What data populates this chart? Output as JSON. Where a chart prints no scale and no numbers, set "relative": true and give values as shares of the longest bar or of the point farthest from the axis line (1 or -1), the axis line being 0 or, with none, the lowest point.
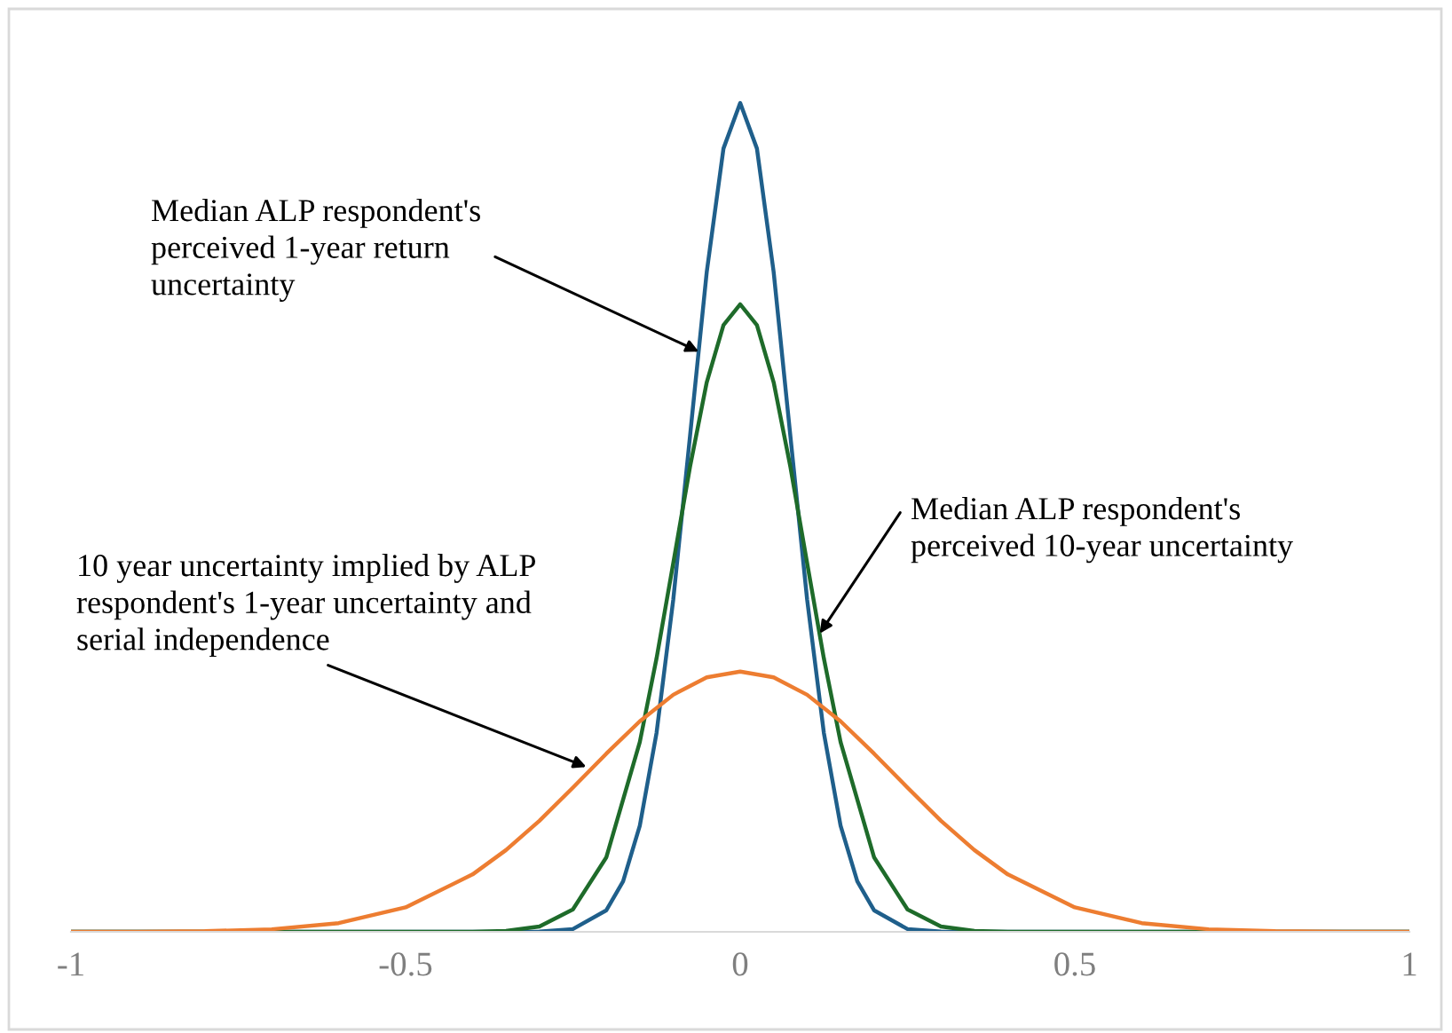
{
  "chart_data": {
    "type": "line",
    "relative": true,
    "tick_labels": "x",
    "grid": false,
    "xlim": [
      -1,
      1
    ],
    "xticks": [
      -1,
      -0.5,
      0,
      0.5,
      1
    ],
    "series": [
      {
        "color": "#1f5f8b",
        "x": [
          -1,
          -0.4,
          -0.3,
          -0.25,
          -0.2,
          -0.175,
          -0.15,
          -0.125,
          -0.1,
          -0.075,
          -0.05,
          -0.025,
          0,
          0.025,
          0.05,
          0.075,
          0.1,
          0.125,
          0.15,
          0.175,
          0.2,
          0.25,
          0.3,
          0.4,
          1
        ],
        "values": [
          0,
          0,
          0.0003,
          0.0033,
          0.026,
          0.061,
          0.128,
          0.24,
          0.401,
          0.598,
          0.796,
          0.945,
          1,
          0.945,
          0.796,
          0.598,
          0.401,
          0.24,
          0.128,
          0.061,
          0.026,
          0.0033,
          0.0003,
          0,
          0
        ]
      },
      {
        "color": "#1e6b2a",
        "x": [
          -1,
          -0.5,
          -0.4,
          -0.35,
          -0.3,
          -0.25,
          -0.2,
          -0.15,
          -0.125,
          -0.1,
          -0.075,
          -0.05,
          -0.025,
          0,
          0.025,
          0.05,
          0.075,
          0.1,
          0.125,
          0.15,
          0.2,
          0.25,
          0.3,
          0.35,
          0.4,
          0.5,
          1
        ],
        "values": [
          0,
          0,
          0.0001,
          0.0011,
          0.0064,
          0.027,
          0.09,
          0.229,
          0.33,
          0.445,
          0.561,
          0.663,
          0.732,
          0.757,
          0.732,
          0.663,
          0.561,
          0.445,
          0.33,
          0.229,
          0.09,
          0.027,
          0.0064,
          0.0011,
          0.0001,
          0,
          0
        ]
      },
      {
        "color": "#ed7d31",
        "x": [
          -1,
          -0.9,
          -0.8,
          -0.7,
          -0.6,
          -0.5,
          -0.4,
          -0.35,
          -0.3,
          -0.25,
          -0.2,
          -0.15,
          -0.1,
          -0.05,
          0,
          0.05,
          0.1,
          0.15,
          0.2,
          0.25,
          0.3,
          0.35,
          0.4,
          0.5,
          0.6,
          0.7,
          0.8,
          0.9,
          1
        ],
        "values": [
          0,
          0.0001,
          0.0007,
          0.0031,
          0.0105,
          0.0295,
          0.0692,
          0.0986,
          0.134,
          0.174,
          0.215,
          0.254,
          0.286,
          0.307,
          0.314,
          0.307,
          0.286,
          0.254,
          0.215,
          0.174,
          0.134,
          0.0986,
          0.0692,
          0.0295,
          0.0105,
          0.0031,
          0.0007,
          0.0001,
          0
        ]
      }
    ],
    "annotations": [
      {
        "text": "Median ALP respondent's\nperceived 1-year return\nuncertainty",
        "x": -0.062,
        "y": 0.7
      },
      {
        "text": "Median ALP respondent's\nperceived 10-year uncertainty",
        "x": 0.119,
        "y": 0.36
      },
      {
        "text": "10 year uncertainty implied by ALP\nrespondent's 1-year uncertainty and\nserial independence",
        "x": -0.23,
        "y": 0.199
      }
    ]
  }
}
